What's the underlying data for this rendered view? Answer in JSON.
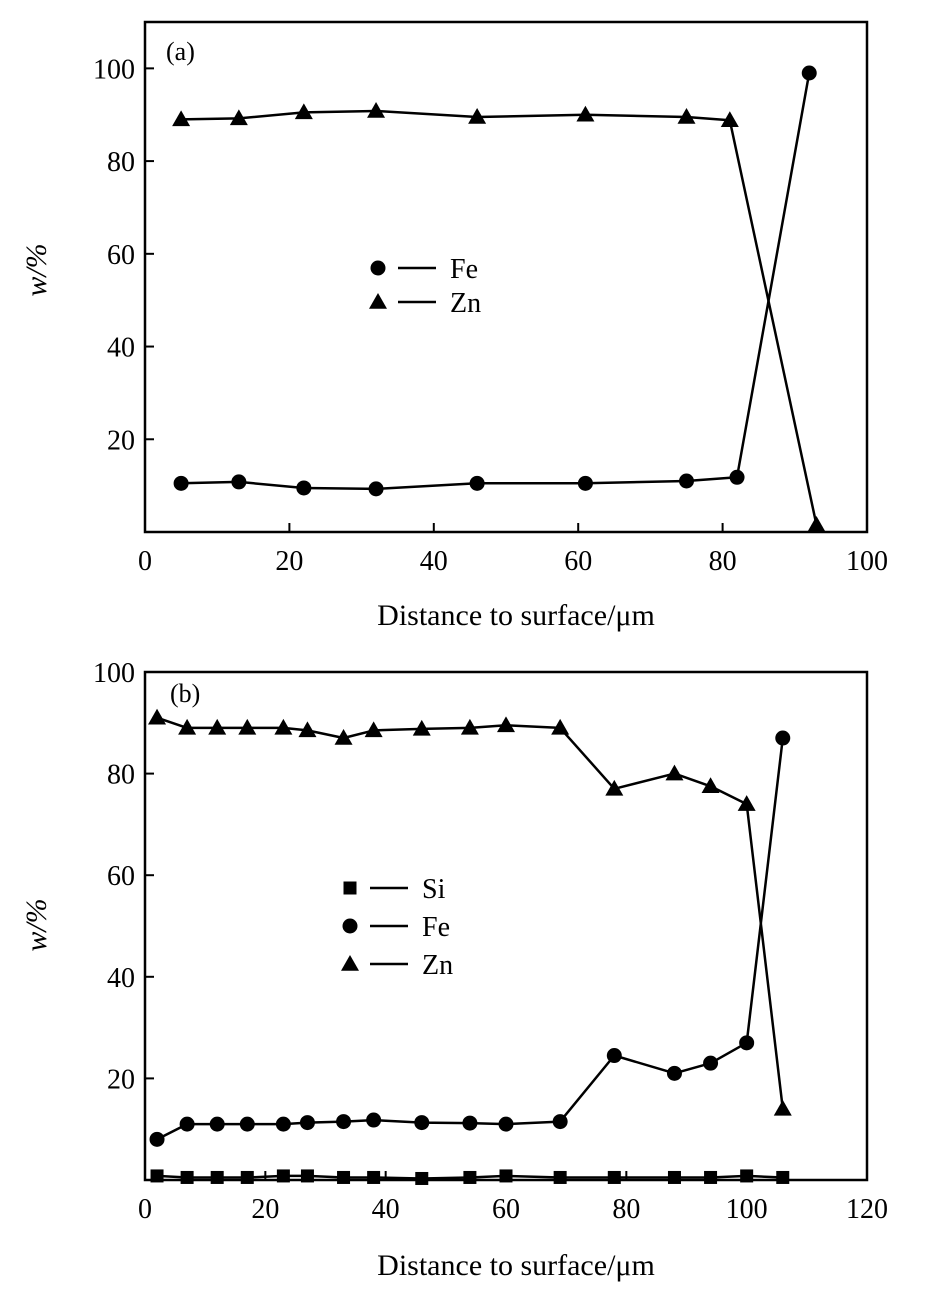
{
  "chart_data": [
    {
      "panel": "(a)",
      "type": "line",
      "xlabel": "Distance to surface/μm",
      "ylabel": "w/%",
      "xlim": [
        0,
        100
      ],
      "ylim": [
        0,
        110
      ],
      "xticks": [
        0,
        20,
        40,
        60,
        80,
        100
      ],
      "yticks": [
        20,
        40,
        60,
        80,
        100
      ],
      "legend_position": "center-left",
      "series": [
        {
          "name": "Fe",
          "marker": "circle",
          "x": [
            5,
            13,
            22,
            32,
            46,
            61,
            75,
            82,
            92
          ],
          "y": [
            10.5,
            10.8,
            9.5,
            9.3,
            10.5,
            10.5,
            11.0,
            11.8,
            99
          ]
        },
        {
          "name": "Zn",
          "marker": "triangle",
          "x": [
            5,
            13,
            22,
            32,
            46,
            61,
            75,
            81,
            93
          ],
          "y": [
            89,
            89.2,
            90.5,
            90.8,
            89.5,
            90,
            89.5,
            88.8,
            1.5
          ]
        }
      ]
    },
    {
      "panel": "(b)",
      "type": "line",
      "xlabel": "Distance to surface/μm",
      "ylabel": "w/%",
      "xlim": [
        0,
        120
      ],
      "ylim": [
        0,
        100
      ],
      "xticks": [
        0,
        20,
        40,
        60,
        80,
        100,
        120
      ],
      "yticks": [
        20,
        40,
        60,
        80,
        100
      ],
      "legend_position": "center-left",
      "series": [
        {
          "name": "Si",
          "marker": "square",
          "x": [
            2,
            7,
            12,
            17,
            23,
            27,
            33,
            38,
            46,
            54,
            60,
            69,
            78,
            88,
            94,
            100,
            106
          ],
          "y": [
            0.8,
            0.5,
            0.5,
            0.5,
            0.8,
            0.8,
            0.5,
            0.5,
            0.3,
            0.5,
            0.8,
            0.5,
            0.5,
            0.5,
            0.5,
            0.8,
            0.5
          ]
        },
        {
          "name": "Fe",
          "marker": "circle",
          "x": [
            2,
            7,
            12,
            17,
            23,
            27,
            33,
            38,
            46,
            54,
            60,
            69,
            78,
            88,
            94,
            100,
            106
          ],
          "y": [
            8,
            11,
            11,
            11,
            11,
            11.3,
            11.5,
            11.8,
            11.3,
            11.2,
            11,
            11.5,
            24.5,
            21,
            23,
            27,
            87
          ]
        },
        {
          "name": "Zn",
          "marker": "triangle",
          "x": [
            2,
            7,
            12,
            17,
            23,
            27,
            33,
            38,
            46,
            54,
            60,
            69,
            78,
            88,
            94,
            100,
            106
          ],
          "y": [
            91,
            89,
            89,
            89,
            89,
            88.5,
            87,
            88.5,
            88.8,
            89,
            89.5,
            89,
            77,
            80,
            77.5,
            74,
            14
          ]
        }
      ]
    }
  ]
}
